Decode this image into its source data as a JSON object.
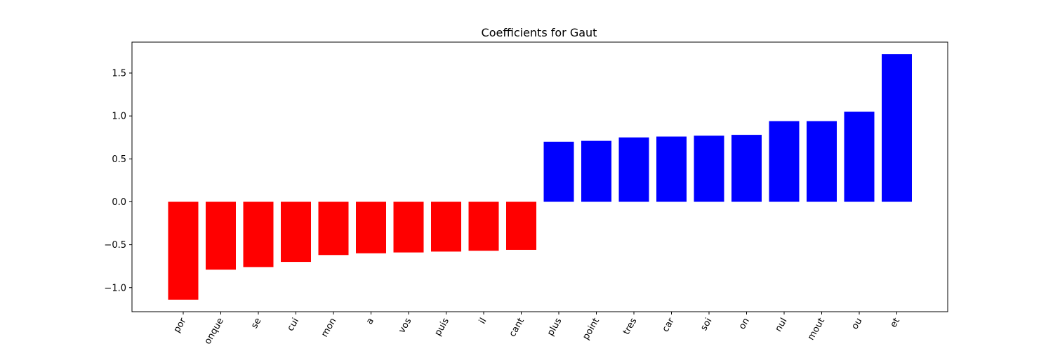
{
  "chart_data": {
    "type": "bar",
    "title": "Coefficients for Gaut",
    "xlabel": "",
    "ylabel": "",
    "categories": [
      "por",
      "onque",
      "se",
      "cui",
      "mon",
      "a",
      "vos",
      "puis",
      "il",
      "cant",
      "plus",
      "point",
      "tres",
      "car",
      "soi",
      "on",
      "nul",
      "mout",
      "ou",
      "et"
    ],
    "values": [
      -1.14,
      -0.79,
      -0.76,
      -0.7,
      -0.62,
      -0.6,
      -0.59,
      -0.58,
      -0.57,
      -0.56,
      0.7,
      0.71,
      0.75,
      0.76,
      0.77,
      0.78,
      0.94,
      0.94,
      1.05,
      1.72
    ],
    "yticks": [
      -1.0,
      -0.5,
      0.0,
      0.5,
      1.0,
      1.5
    ],
    "ylim": [
      -1.28,
      1.86
    ],
    "grid": false,
    "colors": {
      "negative": "#ff0000",
      "positive": "#0000ff"
    }
  }
}
